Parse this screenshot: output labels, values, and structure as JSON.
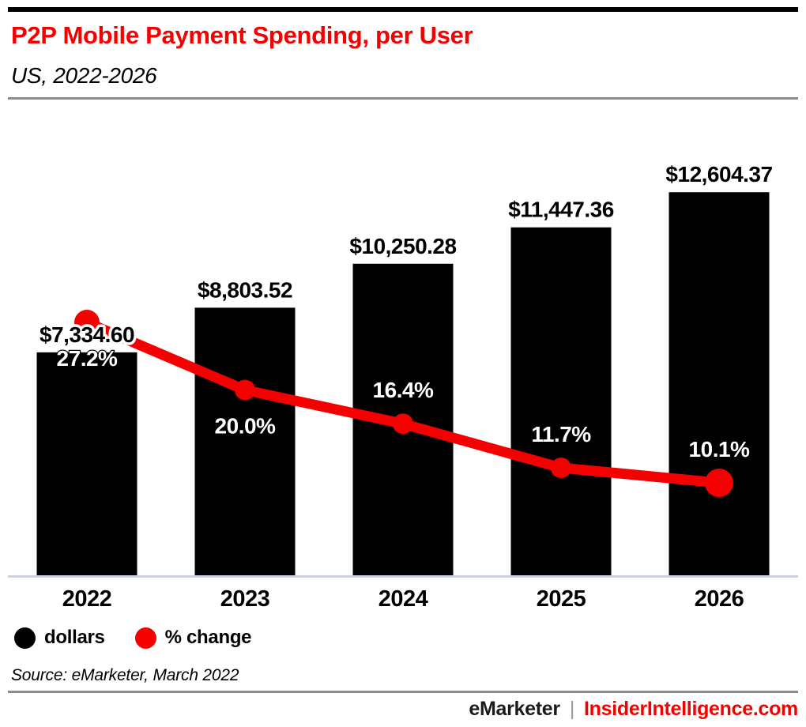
{
  "header": {
    "title": "P2P Mobile Payment Spending, per User",
    "subtitle": "US, 2022-2026"
  },
  "chart_data": {
    "type": "bar",
    "categories": [
      "2022",
      "2023",
      "2024",
      "2025",
      "2026"
    ],
    "series": [
      {
        "name": "dollars",
        "type": "bar",
        "color": "#000000",
        "values": [
          7334.6,
          8803.52,
          10250.28,
          11447.36,
          12604.37
        ],
        "labels": [
          "$7,334.60",
          "$8,803.52",
          "$10,250.28",
          "$11,447.36",
          "$12,604.37"
        ]
      },
      {
        "name": "% change",
        "type": "line",
        "color": "#f40000",
        "values": [
          27.2,
          20.0,
          16.4,
          11.7,
          10.1
        ],
        "labels": [
          "27.2%",
          "20.0%",
          "16.4%",
          "11.7%",
          "10.1%"
        ],
        "label_positions": [
          "below",
          "below",
          "above",
          "above",
          "above"
        ]
      }
    ],
    "title": "P2P Mobile Payment Spending, per User",
    "xlabel": "",
    "ylabel": "",
    "ylim_dollars": [
      0,
      18928
    ],
    "ylim_pct": [
      0,
      61.3
    ],
    "grid": false,
    "legend_position": "bottom-left"
  },
  "legend": {
    "items": [
      {
        "label": "dollars",
        "color": "#000000"
      },
      {
        "label": "% change",
        "color": "#f40000"
      }
    ]
  },
  "footer": {
    "source": "Source: eMarketer, March 2022",
    "brand_left": "eMarketer",
    "brand_separator": "|",
    "brand_right": "InsiderIntelligence.com"
  },
  "colors": {
    "accent_red": "#f40000",
    "bar_black": "#000000",
    "rule_gray": "#8c8c8c",
    "baseline_gray": "#ccd3de"
  }
}
